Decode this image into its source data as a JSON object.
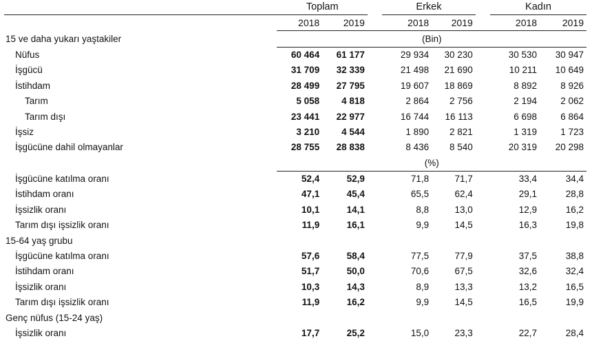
{
  "header": {
    "groups": [
      "Toplam",
      "Erkek",
      "Kadın"
    ],
    "years": [
      "2018",
      "2019",
      "2018",
      "2019",
      "2018",
      "2019"
    ]
  },
  "sections": [
    {
      "title": "15 ve daha yukarı yaştakiler",
      "unit": "(Bin)",
      "rows": [
        {
          "label": "Nüfus",
          "indent": 1,
          "values": [
            "60 464",
            "61 177",
            "29 934",
            "30 230",
            "30 530",
            "30 947"
          ]
        },
        {
          "label": "İşgücü",
          "indent": 1,
          "values": [
            "31 709",
            "32 339",
            "21 498",
            "21 690",
            "10 211",
            "10 649"
          ]
        },
        {
          "label": "İstihdam",
          "indent": 1,
          "values": [
            "28 499",
            "27 795",
            "19 607",
            "18 869",
            "8 892",
            "8 926"
          ]
        },
        {
          "label": "Tarım",
          "indent": 2,
          "values": [
            "5 058",
            "4 818",
            "2 864",
            "2 756",
            "2 194",
            "2 062"
          ]
        },
        {
          "label": "Tarım dışı",
          "indent": 2,
          "values": [
            "23 441",
            "22 977",
            "16 744",
            "16 113",
            "6 698",
            "6 864"
          ]
        },
        {
          "label": "İşsiz",
          "indent": 1,
          "values": [
            "3 210",
            "4 544",
            "1 890",
            "2 821",
            "1 319",
            "1 723"
          ]
        },
        {
          "label": "İşgücüne dahil olmayanlar",
          "indent": 1,
          "values": [
            "28 755",
            "28 838",
            "8 436",
            "8 540",
            "20 319",
            "20 298"
          ]
        }
      ]
    },
    {
      "title": "",
      "unit": "(%)",
      "rows": [
        {
          "label": "İşgücüne katılma oranı",
          "indent": 1,
          "values": [
            "52,4",
            "52,9",
            "71,8",
            "71,7",
            "33,4",
            "34,4"
          ]
        },
        {
          "label": "İstihdam oranı",
          "indent": 1,
          "values": [
            "47,1",
            "45,4",
            "65,5",
            "62,4",
            "29,1",
            "28,8"
          ]
        },
        {
          "label": "İşsizlik oranı",
          "indent": 1,
          "values": [
            "10,1",
            "14,1",
            "8,8",
            "13,0",
            "12,9",
            "16,2"
          ]
        },
        {
          "label": "Tarım dışı işsizlik oranı",
          "indent": 1,
          "values": [
            "11,9",
            "16,1",
            "9,9",
            "14,5",
            "16,3",
            "19,8"
          ]
        }
      ]
    },
    {
      "title": "15-64 yaş grubu",
      "unit": "",
      "rows": [
        {
          "label": "İşgücüne katılma oranı",
          "indent": 1,
          "values": [
            "57,6",
            "58,4",
            "77,5",
            "77,9",
            "37,5",
            "38,8"
          ]
        },
        {
          "label": "İstihdam oranı",
          "indent": 1,
          "values": [
            "51,7",
            "50,0",
            "70,6",
            "67,5",
            "32,6",
            "32,4"
          ]
        },
        {
          "label": "İşsizlik oranı",
          "indent": 1,
          "values": [
            "10,3",
            "14,3",
            "8,9",
            "13,3",
            "13,2",
            "16,5"
          ]
        },
        {
          "label": "Tarım dışı işsizlik oranı",
          "indent": 1,
          "values": [
            "11,9",
            "16,2",
            "9,9",
            "14,5",
            "16,5",
            "19,9"
          ]
        }
      ]
    },
    {
      "title": "Genç nüfus (15-24 yaş)",
      "unit": "",
      "rows": [
        {
          "label": "İşsizlik oranı",
          "indent": 1,
          "values": [
            "17,7",
            "25,2",
            "15,0",
            "23,3",
            "22,7",
            "28,4"
          ]
        }
      ]
    }
  ]
}
